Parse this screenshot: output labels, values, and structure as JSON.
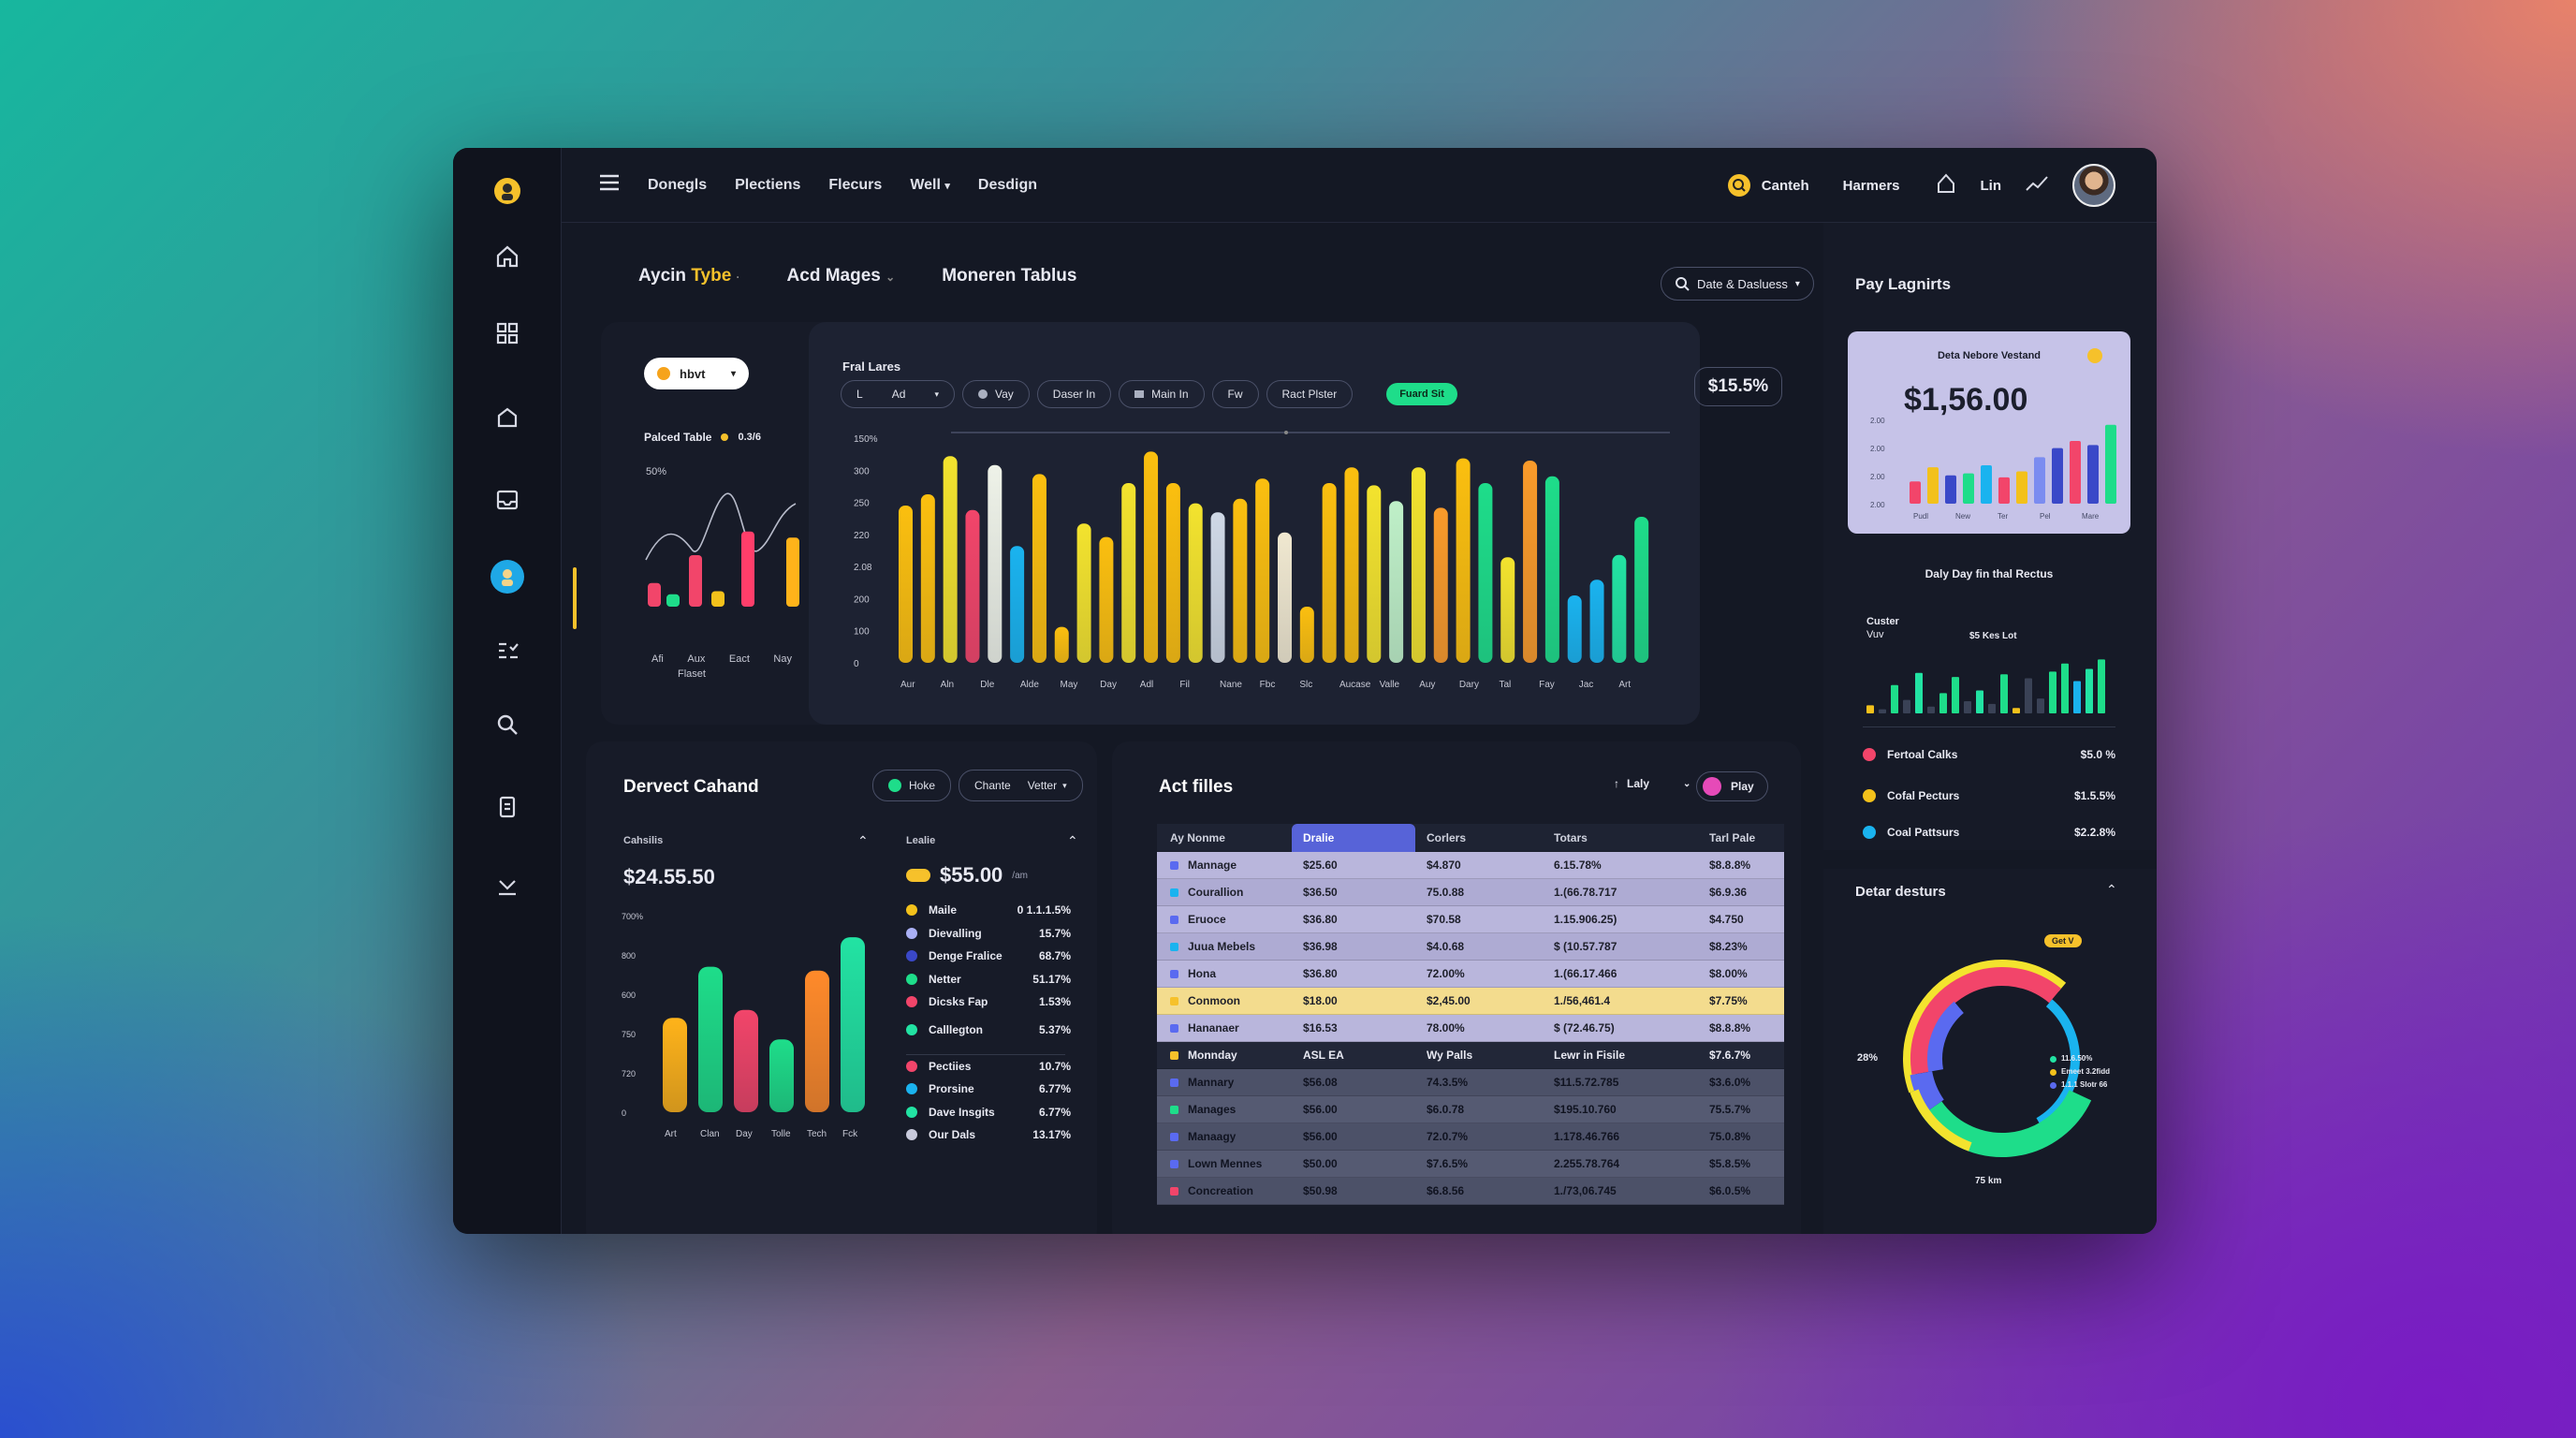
{
  "nav": {
    "items": [
      "Donegls",
      "Plectiens",
      "Flecurs",
      "Well",
      "Desdign"
    ],
    "search_label": "Canteh",
    "user_label": "Harmers",
    "lin_label": "Lin"
  },
  "section_tabs": {
    "tab1_a": "Aycin",
    "tab1_b": "Tybe",
    "tab2": "Acd Mages",
    "tab3": "Moneren Tablus",
    "date_button": "Date & Dasluess"
  },
  "main_panel": {
    "dropdown": "hbvt",
    "left_title": "Palced Table",
    "left_value": "0.3/6",
    "left_ytick": "50%",
    "left_xlabels": [
      "Afi",
      "Aux",
      "Eact",
      "Nay"
    ],
    "left_xsub": "Flaset",
    "chart_title": "Fral Lares",
    "filters": [
      "Ad",
      "Vay",
      "Daser In",
      "Main In",
      "Fw",
      "Ract Plster"
    ],
    "filter_first_prefix": "L",
    "active_filter": "Fuard Sit",
    "kpi": "$15.5%"
  },
  "chart_data": [
    {
      "type": "bar",
      "title": "Fral Lares",
      "yticks": [
        "150%",
        "300",
        "250",
        "220",
        "2.08",
        "200",
        "100",
        "0"
      ],
      "xlabels": [
        "Aur",
        "Aln",
        "Dle",
        "Alde",
        "May",
        "Day",
        "Adl",
        "Fil",
        "Nane",
        "Fbc",
        "Slc",
        "Aucase",
        "Valle",
        "Auy",
        "Dary",
        "Tal",
        "Fay",
        "Jac",
        "Art"
      ],
      "values": [
        70,
        75,
        92,
        68,
        88,
        52,
        84,
        16,
        62,
        56,
        80,
        94,
        80,
        71,
        67,
        73,
        82,
        58,
        25,
        80,
        87,
        79,
        72,
        87,
        69,
        91,
        80,
        47,
        90,
        83,
        30,
        37,
        48,
        65
      ],
      "colors": [
        "#fbbf0f",
        "#fbbf0f",
        "#f3e32e",
        "#f2456a",
        "#eef2e8",
        "#1ab3ef",
        "#fbbf0f",
        "#fbbf0f",
        "#f3e32e",
        "#fbbf0f",
        "#f3e32e",
        "#fbbf0f",
        "#fbbf0f",
        "#f3e32e",
        "#cfd8e6",
        "#fbbf0f",
        "#fbbf0f",
        "#f0e8d0",
        "#fbbf0f",
        "#fbbf0f",
        "#fbbf0f",
        "#f3e32e",
        "#bff0c8",
        "#f3e32e",
        "#f99a2a",
        "#fbbf0f",
        "#1edd8a",
        "#f3e32e",
        "#f99a2a",
        "#1edd8a",
        "#1ab3ef",
        "#1ab3ef",
        "#22e3a3",
        "#1edd8a"
      ]
    },
    {
      "type": "bar",
      "title": "Palced Table",
      "values": [
        23,
        12,
        50,
        15,
        73,
        67
      ],
      "colors": [
        "#f2456a",
        "#1edd8a",
        "#f2456a",
        "#f3c11b",
        "#ff3e6a",
        "#ffb31a"
      ]
    },
    {
      "type": "bar",
      "title": "Dervect Cahand",
      "yticks": [
        "700%",
        "800",
        "600",
        "750",
        "720",
        "0"
      ],
      "xlabels": [
        "Art",
        "Clan",
        "Day",
        "Tolle",
        "Tech",
        "Fck"
      ],
      "values": [
        48,
        74,
        52,
        37,
        72,
        89
      ],
      "colors": [
        "#ffb31a",
        "#1edd8a",
        "#f2456a",
        "#1edd8a",
        "#ff8a2a",
        "#22e3a3"
      ]
    },
    {
      "type": "bar",
      "title": "Deta Nebore Vestand",
      "yticks": [
        "2.00",
        "2.00",
        "2.00",
        "2.00"
      ],
      "xlabels": [
        "Pudl",
        "New",
        "Ter",
        "Pel",
        "Mare"
      ],
      "values": [
        22,
        36,
        28,
        30,
        38,
        26,
        32,
        46,
        55,
        62,
        58,
        78
      ],
      "colors": [
        "#f2456a",
        "#f3c11b",
        "#3a48c8",
        "#1edd8a",
        "#1ab3ef",
        "#f2456a",
        "#f3c11b",
        "#7b8cf0",
        "#3a48c8",
        "#f2456a",
        "#3a48c8",
        "#1edd8a"
      ]
    },
    {
      "type": "bar",
      "title": "Daly Day fin thal Rectus",
      "values": [
        12,
        6,
        42,
        20,
        60,
        10,
        30,
        54,
        18,
        34,
        14,
        58,
        8,
        52,
        22,
        62,
        74,
        48,
        66,
        80
      ],
      "colors": [
        "#f3c11b",
        "#3a4256",
        "#1edd8a",
        "#3a4256",
        "#22e3a3",
        "#3a4256",
        "#1edd8a",
        "#1edd8a",
        "#3a4256",
        "#22e3a3",
        "#3a4256",
        "#1edd8a",
        "#f3c11b",
        "#3a4256",
        "#3a4256",
        "#1edd8a",
        "#1edd8a",
        "#1ab3ef",
        "#22e3a3",
        "#1edd8a"
      ]
    }
  ],
  "pay_panel": {
    "title": "Pay Lagnirts",
    "card_title": "Deta Nebore Vestand",
    "card_value": "$1,56.00",
    "sub_title": "Daly Day fin thal Rectus",
    "mini_label": "Custer",
    "mini_sub": "Vuv",
    "mini_kpi": "$5 Kes Lot",
    "legend": [
      {
        "label": "Fertoal Calks",
        "value": "$5.0 %",
        "color": "#f2456a"
      },
      {
        "label": "Cofal Pecturs",
        "value": "$1.5.5%",
        "color": "#f3c11b"
      },
      {
        "label": "Coal Pattsurs",
        "value": "$2.2.8%",
        "color": "#1ab3ef"
      }
    ]
  },
  "dervect": {
    "title": "Dervect Cahand",
    "pill1": "Hoke",
    "pill2": "Chante",
    "pill3": "Vetter",
    "col1_label": "Cahsilis",
    "col1_value": "$24.55.50",
    "col2_label": "Lealie",
    "col2_value": "$55.00",
    "col2_unit": "/am",
    "legend": [
      {
        "label": "Maile",
        "value": "0  1.1.1.5%",
        "color": "#f3c11b"
      },
      {
        "label": "Dievalling",
        "value": "15.7%",
        "color": "#aab0f5"
      },
      {
        "label": "Denge Fralice",
        "value": "68.7%",
        "color": "#3a48c8"
      },
      {
        "label": "Netter",
        "value": "51.17%",
        "color": "#1edd8a"
      },
      {
        "label": "Dicsks Fap",
        "value": "1.53%",
        "color": "#f2456a"
      },
      {
        "label": "Calllegton",
        "value": "5.37%",
        "color": "#22e3a3"
      },
      {
        "label": "Pectiies",
        "value": "10.7%",
        "color": "#f2456a"
      },
      {
        "label": "Prorsine",
        "value": "6.77%",
        "color": "#1ab3ef"
      },
      {
        "label": "Dave Insgits",
        "value": "6.77%",
        "color": "#22e3a3"
      },
      {
        "label": "Our Dals",
        "value": "13.17%",
        "color": "#c8cadc"
      }
    ]
  },
  "act_files": {
    "title": "Act filles",
    "sort_label": "Laly",
    "play_label": "Play",
    "headers": [
      "Ay  Nonme",
      "Dralie",
      "Corlers",
      "Totars",
      "Tarl Pale"
    ],
    "rows": [
      {
        "name": "Mannage",
        "c2": "$25.60",
        "c3": "$4.870",
        "c4": "6.15.78%",
        "c5": "$8.8.8%"
      },
      {
        "name": "Courallion",
        "c2": "$36.50",
        "c3": "75.0.88",
        "c4": "1.(66.78.717",
        "c5": "$6.9.36"
      },
      {
        "name": "Eruoce",
        "c2": "$36.80",
        "c3": "$70.58",
        "c4": "1.15.906.25)",
        "c5": "$4.750"
      },
      {
        "name": "Juua Mebels",
        "c2": "$36.98",
        "c3": "$4.0.68",
        "c4": "$ (10.57.787",
        "c5": "$8.23%"
      },
      {
        "name": "Hona",
        "c2": "$36.80",
        "c3": "72.00%",
        "c4": "1.(66.17.466",
        "c5": "$8.00%"
      },
      {
        "name": "Conmoon",
        "c2": "$18.00",
        "c3": "$2,45.00",
        "c4": "1./56,461.4",
        "c5": "$7.75%"
      },
      {
        "name": "Hananaer",
        "c2": "$16.53",
        "c3": "78.00%",
        "c4": "$ (72.46.75)",
        "c5": "$8.8.8%"
      },
      {
        "name": "Monnday",
        "c2": "ASL EA",
        "c3": "Wy Palls",
        "c4": "Lewr in Fisile",
        "c5": "$7.6.7%"
      },
      {
        "name": "Mannary",
        "c2": "$56.08",
        "c3": "74.3.5%",
        "c4": "$11.5.72.785",
        "c5": "$3.6.0%"
      },
      {
        "name": "Manages",
        "c2": "$56.00",
        "c3": "$6.0.78",
        "c4": "$195.10.760",
        "c5": "75.5.7%"
      },
      {
        "name": "Manaagy",
        "c2": "$56.00",
        "c3": "72.0.7%",
        "c4": "1.178.46.766",
        "c5": "75.0.8%"
      },
      {
        "name": "Lown Mennes",
        "c2": "$50.00",
        "c3": "$7.6.5%",
        "c4": "2.255.78.764",
        "c5": "$5.8.5%"
      },
      {
        "name": "Concreation",
        "c2": "$50.98",
        "c3": "$6.8.56",
        "c4": "1./73,06.745",
        "c5": "$6.0.5%"
      }
    ]
  },
  "detar": {
    "title": "Detar desturs",
    "badge": "Get V",
    "left_label": "28%",
    "bottom_label": "75 km",
    "legend": [
      {
        "label": "11.6.50%",
        "color": "#22e3a3"
      },
      {
        "label": "Emeet 3.2fidd",
        "color": "#f3c11b"
      },
      {
        "label": "1.1.1 Slotr 66",
        "color": "#5a6af0"
      }
    ]
  }
}
